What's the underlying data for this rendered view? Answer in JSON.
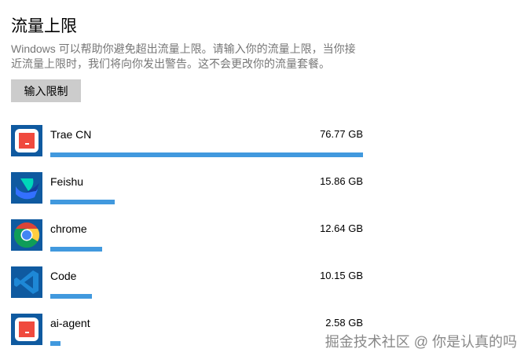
{
  "title": "流量上限",
  "description": "Windows 可以帮助你避免超出流量上限。请输入你的流量上限，当你接近流量上限时，我们将向你发出警告。这不会更改你的流量套餐。",
  "button_label": "输入限制",
  "accent_color": "#4199de",
  "apps": [
    {
      "name": "Trae CN",
      "usage": "76.77 GB",
      "fraction": 1.0,
      "icon": "trae-icon"
    },
    {
      "name": "Feishu",
      "usage": "15.86 GB",
      "fraction": 0.206,
      "icon": "feishu-icon"
    },
    {
      "name": "chrome",
      "usage": "12.64 GB",
      "fraction": 0.166,
      "icon": "chrome-icon"
    },
    {
      "name": "Code",
      "usage": "10.15 GB",
      "fraction": 0.133,
      "icon": "vscode-icon"
    },
    {
      "name": "ai-agent",
      "usage": "2.58 GB",
      "fraction": 0.033,
      "icon": "trae-icon"
    }
  ],
  "watermark": "掘金技术社区 @ 你是认真的吗"
}
